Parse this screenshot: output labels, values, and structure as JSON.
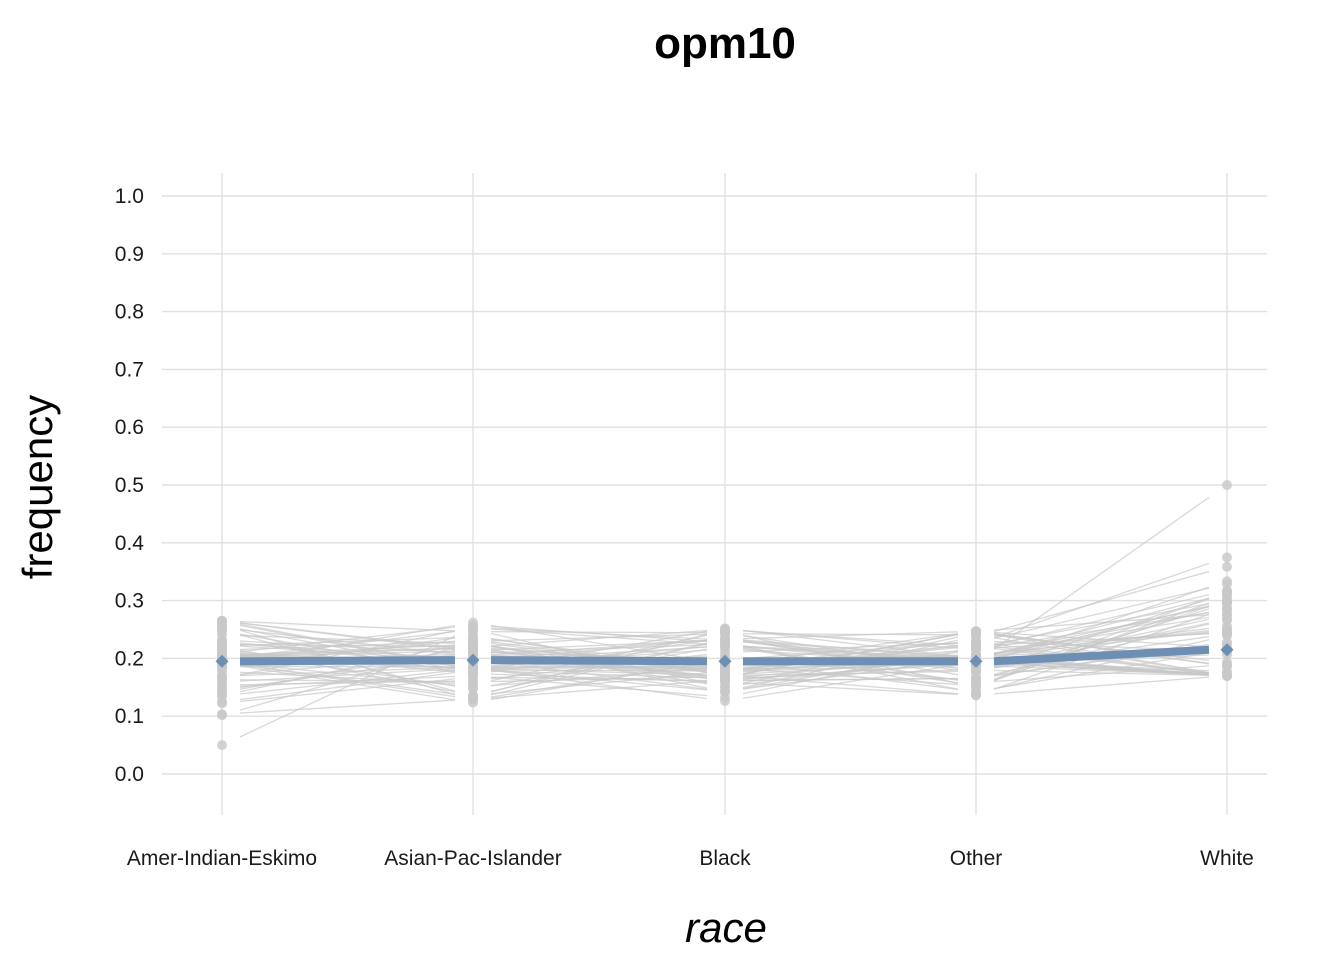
{
  "chart_data": {
    "type": "line",
    "title": "opm10",
    "xlabel": "race",
    "ylabel": "frequency",
    "categories": [
      "Amer-Indian-Eskimo",
      "Asian-Pac-Islander",
      "Black",
      "Other",
      "White"
    ],
    "ylim": [
      -0.07,
      1.04
    ],
    "yticks": [
      "0.0",
      "0.1",
      "0.2",
      "0.3",
      "0.4",
      "0.5",
      "0.6",
      "0.7",
      "0.8",
      "0.9",
      "1.0"
    ],
    "grid": true,
    "series": [
      {
        "role": "mean",
        "color": "#6e8fb4",
        "values": [
          0.195,
          0.197,
          0.195,
          0.195,
          0.215
        ]
      }
    ],
    "bootstrap_lines": {
      "color": "#c8c8c8",
      "count": 60,
      "ranges": [
        [
          0.05,
          0.265
        ],
        [
          0.1,
          0.262
        ],
        [
          0.11,
          0.252
        ],
        [
          0.1,
          0.247
        ],
        [
          0.17,
          0.5
        ]
      ]
    }
  }
}
